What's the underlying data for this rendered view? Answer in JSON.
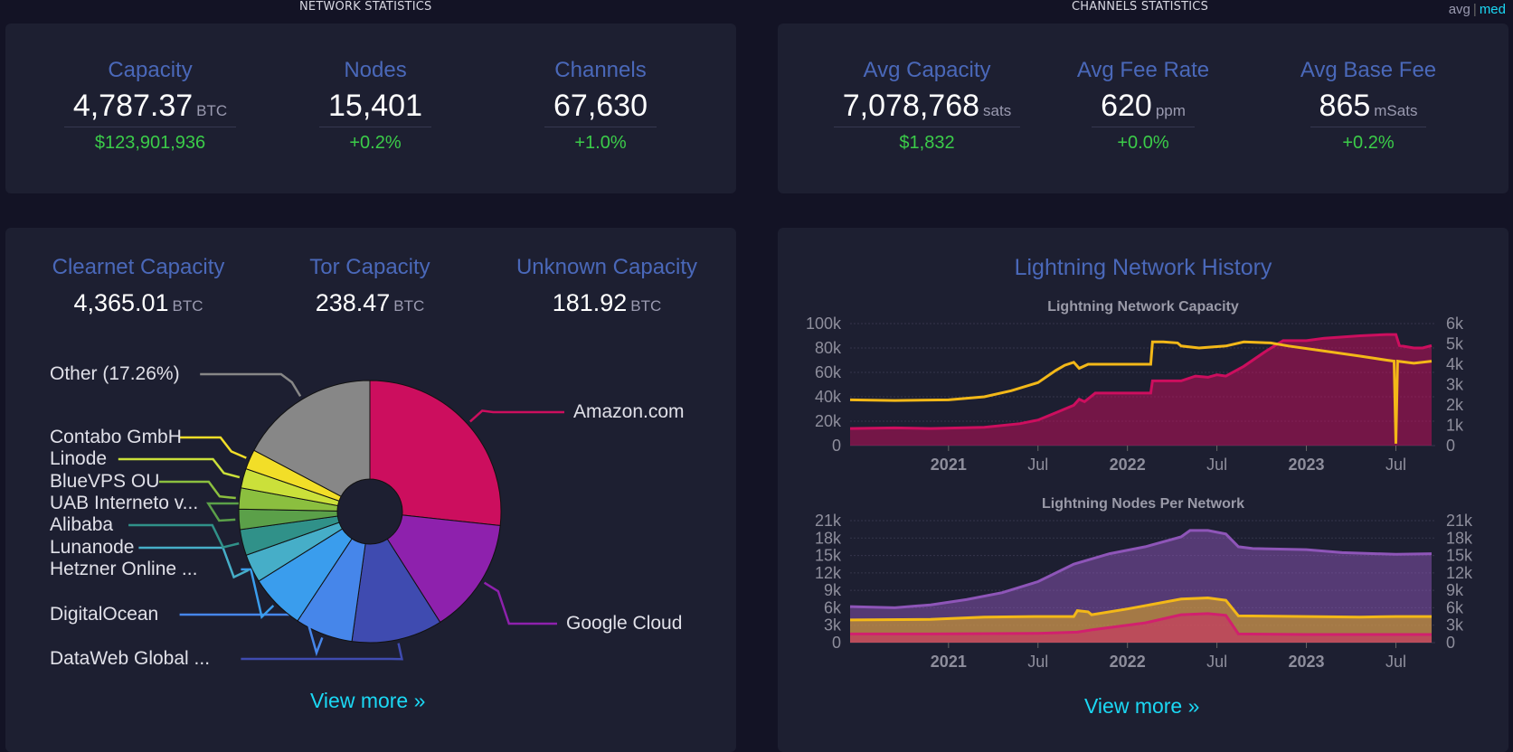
{
  "network": {
    "section_title": "NETWORK STATISTICS",
    "stats": [
      {
        "label": "Capacity",
        "value": "4,787.37",
        "unit": "BTC",
        "change": "$123,901,936"
      },
      {
        "label": "Nodes",
        "value": "15,401",
        "unit": "",
        "change": "+0.2%"
      },
      {
        "label": "Channels",
        "value": "67,630",
        "unit": "",
        "change": "+1.0%"
      }
    ]
  },
  "channels": {
    "section_title": "CHANNELS STATISTICS",
    "toggle": {
      "avg": "avg",
      "sep": "|",
      "med": "med"
    },
    "stats": [
      {
        "label": "Avg Capacity",
        "value": "7,078,768",
        "unit": "sats",
        "change": "$1,832"
      },
      {
        "label": "Avg Fee Rate",
        "value": "620",
        "unit": "ppm",
        "change": "+0.0%"
      },
      {
        "label": "Avg Base Fee",
        "value": "865",
        "unit": "mSats",
        "change": "+0.2%"
      }
    ]
  },
  "isp": {
    "capacities": [
      {
        "label": "Clearnet Capacity",
        "value": "4,365.01",
        "unit": "BTC"
      },
      {
        "label": "Tor Capacity",
        "value": "238.47",
        "unit": "BTC"
      },
      {
        "label": "Unknown Capacity",
        "value": "181.92",
        "unit": "BTC"
      }
    ],
    "view_more": "View more »"
  },
  "history": {
    "title": "Lightning Network History",
    "view_more": "View more »"
  },
  "chart_data": [
    {
      "type": "pie",
      "slices": [
        {
          "name": "Amazon.com",
          "value": 26.7,
          "color": "#cc0e5e"
        },
        {
          "name": "Google Cloud",
          "value": 14.3,
          "color": "#8e21ad"
        },
        {
          "name": "DataWeb Global ...",
          "value": 11.2,
          "color": "#3f4bb0"
        },
        {
          "name": "DigitalOcean",
          "value": 7.1,
          "color": "#4686ea"
        },
        {
          "name": "Hetzner Online ...",
          "value": 6.8,
          "color": "#3a9ded"
        },
        {
          "name": "Lunanode",
          "value": 3.5,
          "color": "#46aec8"
        },
        {
          "name": "Alibaba",
          "value": 3.2,
          "color": "#309189"
        },
        {
          "name": "UAB Interneto v...",
          "value": 2.5,
          "color": "#5ba049"
        },
        {
          "name": "BlueVPS OU",
          "value": 2.6,
          "color": "#8bbf3f"
        },
        {
          "name": "Linode",
          "value": 2.4,
          "color": "#cbe03a"
        },
        {
          "name": "Contabo GmbH",
          "value": 2.44,
          "color": "#f2de28"
        },
        {
          "name": "Other (17.26%)",
          "value": 17.26,
          "color": "#878787"
        }
      ]
    },
    {
      "type": "area",
      "title": "Lightning Network Capacity",
      "x_ticks": [
        "2021",
        "Jul",
        "2022",
        "Jul",
        "2023",
        "Jul"
      ],
      "y_ticks_left": [
        "100k",
        "80k",
        "60k",
        "40k",
        "20k",
        "0"
      ],
      "y_ticks_right": [
        "6k",
        "5k",
        "4k",
        "3k",
        "2k",
        "1k",
        "0"
      ],
      "ylim_left": [
        0,
        100000
      ],
      "ylim_right": [
        0,
        6000
      ],
      "series": [
        {
          "color": "#cc0e5e",
          "axis": "left",
          "points": [
            [
              2020.45,
              14000
            ],
            [
              2020.7,
              14500
            ],
            [
              2020.9,
              14000
            ],
            [
              2021.2,
              15000
            ],
            [
              2021.4,
              18000
            ],
            [
              2021.5,
              21000
            ],
            [
              2021.6,
              27000
            ],
            [
              2021.7,
              33000
            ],
            [
              2021.73,
              38000
            ],
            [
              2021.76,
              36000
            ],
            [
              2021.82,
              43000
            ],
            [
              2022.08,
              43000
            ],
            [
              2022.13,
              43000
            ],
            [
              2022.14,
              53000
            ],
            [
              2022.3,
              53000
            ],
            [
              2022.38,
              57000
            ],
            [
              2022.45,
              56000
            ],
            [
              2022.5,
              58000
            ],
            [
              2022.55,
              57000
            ],
            [
              2022.65,
              65000
            ],
            [
              2022.78,
              78000
            ],
            [
              2022.87,
              86000
            ],
            [
              2023.0,
              86000
            ],
            [
              2023.1,
              88000
            ],
            [
              2023.3,
              90000
            ],
            [
              2023.45,
              91000
            ],
            [
              2023.5,
              91000
            ],
            [
              2023.52,
              82000
            ],
            [
              2023.6,
              80000
            ],
            [
              2023.65,
              80000
            ],
            [
              2023.7,
              82000
            ]
          ]
        },
        {
          "color": "#f3b818",
          "axis": "right",
          "points": [
            [
              2020.45,
              2250
            ],
            [
              2020.7,
              2220
            ],
            [
              2021.0,
              2250
            ],
            [
              2021.2,
              2400
            ],
            [
              2021.35,
              2700
            ],
            [
              2021.5,
              3100
            ],
            [
              2021.6,
              3700
            ],
            [
              2021.65,
              3950
            ],
            [
              2021.7,
              4100
            ],
            [
              2021.73,
              3800
            ],
            [
              2021.78,
              4000
            ],
            [
              2022.13,
              4000
            ],
            [
              2022.14,
              5100
            ],
            [
              2022.2,
              5100
            ],
            [
              2022.28,
              5050
            ],
            [
              2022.3,
              4900
            ],
            [
              2022.4,
              4800
            ],
            [
              2022.55,
              4900
            ],
            [
              2022.65,
              5100
            ],
            [
              2022.8,
              5050
            ],
            [
              2022.9,
              4900
            ],
            [
              2023.1,
              4650
            ],
            [
              2023.3,
              4400
            ],
            [
              2023.45,
              4200
            ],
            [
              2023.49,
              4150
            ],
            [
              2023.5,
              100
            ],
            [
              2023.51,
              4150
            ],
            [
              2023.6,
              4050
            ],
            [
              2023.7,
              4150
            ]
          ]
        }
      ]
    },
    {
      "type": "area",
      "title": "Lightning Nodes Per Network",
      "x_ticks": [
        "2021",
        "Jul",
        "2022",
        "Jul",
        "2023",
        "Jul"
      ],
      "y_ticks_left": [
        "21k",
        "18k",
        "15k",
        "12k",
        "9k",
        "6k",
        "3k",
        "0"
      ],
      "y_ticks_right": [
        "21k",
        "18k",
        "15k",
        "12k",
        "9k",
        "6k",
        "3k",
        "0"
      ],
      "ylim": [
        0,
        21000
      ],
      "series": [
        {
          "color": "#8e55b8",
          "points": [
            [
              2020.45,
              6200
            ],
            [
              2020.7,
              6000
            ],
            [
              2020.9,
              6500
            ],
            [
              2021.1,
              7400
            ],
            [
              2021.3,
              8600
            ],
            [
              2021.5,
              10500
            ],
            [
              2021.7,
              13500
            ],
            [
              2021.9,
              15300
            ],
            [
              2022.1,
              16500
            ],
            [
              2022.3,
              18200
            ],
            [
              2022.35,
              19300
            ],
            [
              2022.45,
              19300
            ],
            [
              2022.55,
              18700
            ],
            [
              2022.62,
              16500
            ],
            [
              2022.7,
              16200
            ],
            [
              2023.0,
              16000
            ],
            [
              2023.2,
              15500
            ],
            [
              2023.5,
              15200
            ],
            [
              2023.7,
              15300
            ]
          ]
        },
        {
          "color": "#f3b818",
          "points": [
            [
              2020.45,
              3900
            ],
            [
              2020.9,
              4000
            ],
            [
              2021.2,
              4400
            ],
            [
              2021.5,
              4500
            ],
            [
              2021.7,
              4500
            ],
            [
              2021.72,
              5500
            ],
            [
              2021.78,
              5300
            ],
            [
              2021.8,
              4800
            ],
            [
              2022.0,
              5800
            ],
            [
              2022.3,
              7500
            ],
            [
              2022.45,
              7700
            ],
            [
              2022.55,
              7300
            ],
            [
              2022.62,
              4600
            ],
            [
              2023.0,
              4500
            ],
            [
              2023.3,
              4400
            ],
            [
              2023.5,
              4500
            ],
            [
              2023.7,
              4500
            ]
          ]
        },
        {
          "color": "#d1206e",
          "points": [
            [
              2020.45,
              1500
            ],
            [
              2020.9,
              1500
            ],
            [
              2021.5,
              1600
            ],
            [
              2021.72,
              1800
            ],
            [
              2021.8,
              2200
            ],
            [
              2022.1,
              3400
            ],
            [
              2022.3,
              4800
            ],
            [
              2022.45,
              5000
            ],
            [
              2022.55,
              4700
            ],
            [
              2022.62,
              1500
            ],
            [
              2023.0,
              1400
            ],
            [
              2023.7,
              1400
            ]
          ]
        }
      ]
    }
  ]
}
